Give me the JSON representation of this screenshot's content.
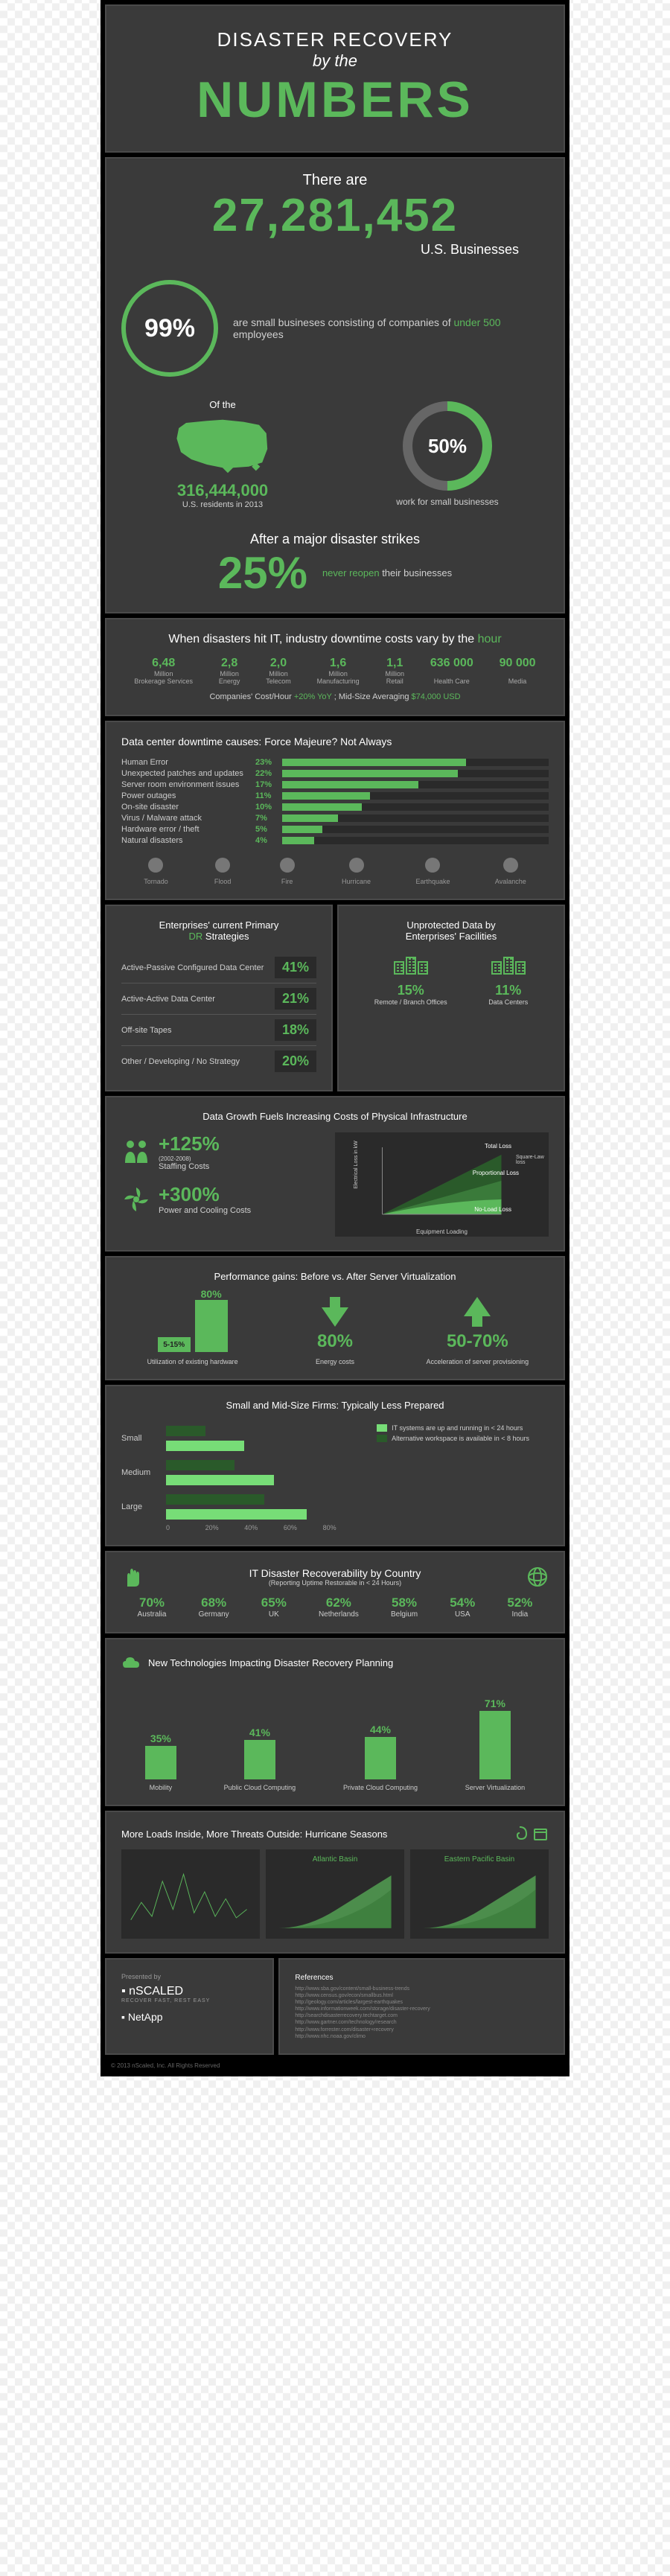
{
  "title": {
    "line1": "DISASTER RECOVERY",
    "line2": "by the",
    "line3": "NUMBERS"
  },
  "hero": {
    "there_are": "There are",
    "businesses": "27,281,452",
    "us_biz": "U.S. Businesses",
    "pct99": "99%",
    "pct99_txt": "are small busineses consisting of companies of",
    "pct99_em": "under 500",
    "pct99_txt2": "employees",
    "of_the": "Of the",
    "residents": "316,444,000",
    "residents_sub": "U.S. residents in 2013",
    "pct50": "50%",
    "pct50_txt": "work for small businesses",
    "after": "After a major disaster strikes",
    "pct25": "25%",
    "never": "never reopen",
    "never2": "their businesses"
  },
  "downtime": {
    "title_a": "When disasters hit IT, industry downtime costs vary by the",
    "title_em": "hour",
    "cols": [
      {
        "v": "6,48",
        "u": "Million",
        "l": "Brokerage Services"
      },
      {
        "v": "2,8",
        "u": "Million",
        "l": "Energy"
      },
      {
        "v": "2,0",
        "u": "Million",
        "l": "Telecom"
      },
      {
        "v": "1,6",
        "u": "Million",
        "l": "Manufacturing"
      },
      {
        "v": "1,1",
        "u": "Million",
        "l": "Retail"
      },
      {
        "v": "636 000",
        "u": "",
        "l": "Health Care"
      },
      {
        "v": "90 000",
        "u": "",
        "l": "Media"
      }
    ],
    "footer_a": "Companies' Cost/Hour",
    "footer_b": "+20% YoY",
    "footer_c": "; Mid-Size Averaging",
    "footer_d": "$74,000 USD"
  },
  "causes": {
    "title": "Data center downtime causes: Force Majeure? Not Always",
    "rows": [
      {
        "l": "Human Error",
        "p": 23
      },
      {
        "l": "Unexpected patches and updates",
        "p": 22
      },
      {
        "l": "Server room environment issues",
        "p": 17
      },
      {
        "l": "Power outages",
        "p": 11
      },
      {
        "l": "On-site disaster",
        "p": 10
      },
      {
        "l": "Virus / Malware attack",
        "p": 7
      },
      {
        "l": "Hardware error / theft",
        "p": 5
      },
      {
        "l": "Natural disasters",
        "p": 4
      }
    ],
    "icons": [
      "Tornado",
      "Flood",
      "Fire",
      "Hurricane",
      "Earthquake",
      "Avalanche"
    ]
  },
  "dr": {
    "title_a": "Enterprises' current Primary",
    "title_b": "DR",
    "title_c": "Strategies",
    "rows": [
      {
        "l": "Active-Passive Configured Data Center",
        "p": "41%"
      },
      {
        "l": "Active-Active Data Center",
        "p": "21%"
      },
      {
        "l": "Off-site Tapes",
        "p": "18%"
      },
      {
        "l": "Other / Developing / No Strategy",
        "p": "20%"
      }
    ]
  },
  "unprotected": {
    "title_a": "Unprotected Data by",
    "title_b": "Enterprises' Facilities",
    "items": [
      {
        "l": "Remote / Branch Offices",
        "p": "15%"
      },
      {
        "l": "Data Centers",
        "p": "11%"
      }
    ]
  },
  "growth": {
    "title": "Data Growth Fuels Increasing Costs of Physical Infrastructure",
    "staff": {
      "v": "+125%",
      "sub": "(2002-2008)",
      "l": "Staffing Costs"
    },
    "power": {
      "v": "+300%",
      "l": "Power and Cooling Costs"
    },
    "chart": {
      "labels": [
        "No-Load Loss",
        "Proportional Loss",
        "Total Loss"
      ],
      "xlabel": "Equipment Loading",
      "side": "Square-Law loss",
      "elec": "Electrical Loss in kW"
    }
  },
  "perf": {
    "title": "Performance gains: Before vs. After Server Virtualization",
    "items": [
      {
        "before": "5-15%",
        "after": "80%",
        "l": "Utilization of existing hardware"
      },
      {
        "v": "80%",
        "l": "Energy costs",
        "dir": "down"
      },
      {
        "v": "50-70%",
        "l": "Acceleration of server provisioning",
        "dir": "up"
      }
    ]
  },
  "prep": {
    "title": "Small and Mid-Size Firms: Typically Less Prepared",
    "rows": [
      {
        "l": "Small",
        "a": 20,
        "b": 40
      },
      {
        "l": "Medium",
        "a": 35,
        "b": 55
      },
      {
        "l": "Large",
        "a": 50,
        "b": 72
      }
    ],
    "legend": [
      "IT systems are up and running in < 24 hours",
      "Alternative workspace is available in < 8 hours"
    ],
    "ticks": [
      "0",
      "20%",
      "40%",
      "60%",
      "80%"
    ]
  },
  "country": {
    "title": "IT Disaster Recoverability by Country",
    "sub": "(Reporting Uptime Restorable in < 24 Hours)",
    "items": [
      {
        "p": "70%",
        "l": "Australia"
      },
      {
        "p": "68%",
        "l": "Germany"
      },
      {
        "p": "65%",
        "l": "UK"
      },
      {
        "p": "62%",
        "l": "Netherlands"
      },
      {
        "p": "58%",
        "l": "Belgium"
      },
      {
        "p": "54%",
        "l": "USA"
      },
      {
        "p": "52%",
        "l": "India"
      }
    ]
  },
  "tech": {
    "title": "New Technologies Impacting Disaster Recovery Planning",
    "items": [
      {
        "p": 35,
        "l": "Mobility"
      },
      {
        "p": 41,
        "l": "Public Cloud Computing"
      },
      {
        "p": 44,
        "l": "Private Cloud Computing"
      },
      {
        "p": 71,
        "l": "Server Virtualization"
      }
    ]
  },
  "hurricane": {
    "title": "More Loads Inside, More Threats Outside: Hurricane Seasons",
    "charts": [
      "Atlantic Basin",
      "Eastern Pacific Basin"
    ]
  },
  "footer": {
    "presented": "Presented by",
    "brand1": "nSCALED",
    "tag1": "RECOVER FAST, REST EASY",
    "brand2": "NetApp",
    "refs_title": "References",
    "copyright": "© 2013 nScaled, Inc. All Rights Reserved"
  },
  "colors": {
    "accent": "#5bb85b",
    "panel": "#3a3a3a",
    "dark": "#2a2a2a"
  }
}
